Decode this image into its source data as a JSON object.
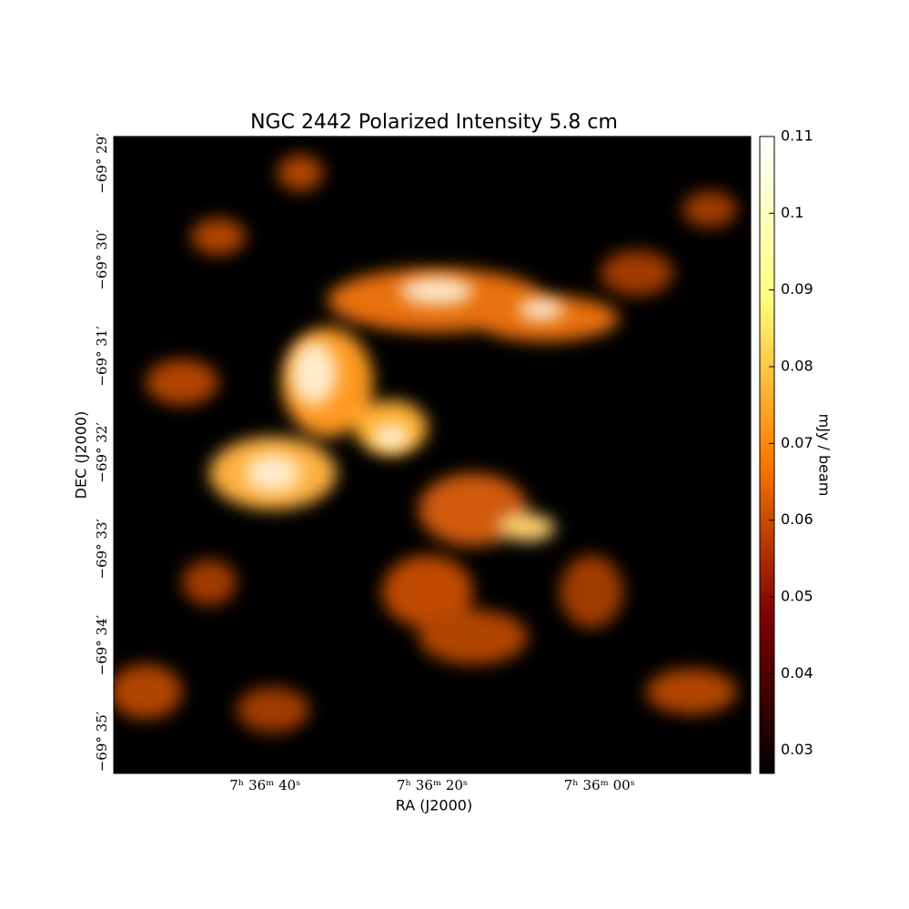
{
  "chart_data": {
    "type": "image",
    "title": "NGC 2442 Polarized Intensity 5.8 cm",
    "xlabel": "RA (J2000)",
    "ylabel": "DEC (J2000)",
    "colorbar_label": "mJy / beam",
    "xlim": [
      58.1,
      -18.1
    ],
    "xticks": [
      {
        "value": 40,
        "label": "7ʰ 36ᵐ 40ˢ"
      },
      {
        "value": 20,
        "label": "7ʰ 36ᵐ 20ˢ"
      },
      {
        "value": 0,
        "label": "7ʰ 36ᵐ 00ˢ"
      }
    ],
    "ylim": [
      -35.33,
      -28.72
    ],
    "yticks": [
      {
        "value": -29,
        "label": "−69° 29′"
      },
      {
        "value": -30,
        "label": "−69° 30′"
      },
      {
        "value": -31,
        "label": "−69° 31′"
      },
      {
        "value": -32,
        "label": "−69° 32′"
      },
      {
        "value": -33,
        "label": "−69° 33′"
      },
      {
        "value": -34,
        "label": "−69° 34′"
      },
      {
        "value": -35,
        "label": "−69° 35′"
      }
    ],
    "colormap": "afmhot",
    "clim": [
      0.027,
      0.11
    ],
    "cticks": [
      0.03,
      0.04,
      0.05,
      0.06,
      0.07,
      0.08,
      0.09,
      0.1,
      {
        "value": 0.11,
        "label": "0.11"
      }
    ]
  }
}
